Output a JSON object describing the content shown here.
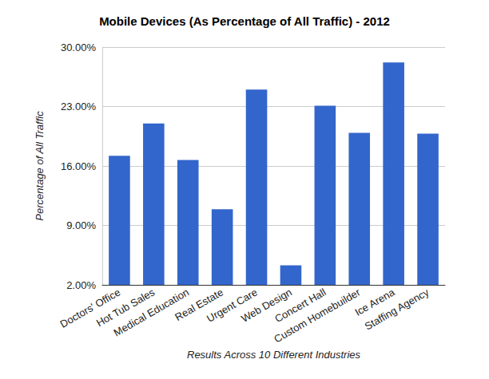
{
  "chart_data": {
    "type": "bar",
    "title": "Mobile Devices (As Percentage of All Traffic) - 2012",
    "x_label": "Results Across 10 Different Industries",
    "y_label": "Percentage of All Traffic",
    "categories": [
      "Doctors' Office",
      "Hot Tub Sales",
      "Medical Education",
      "Real Estate",
      "Urgent Care",
      "Web Design",
      "Concert Hall",
      "Custom Homebuilder",
      "Ice Arena",
      "Staffing Agency"
    ],
    "values": [
      17.2,
      21.0,
      16.7,
      10.9,
      25.0,
      4.3,
      23.1,
      19.9,
      28.2,
      19.8
    ],
    "color": "#3366cc",
    "ylim": [
      2,
      30
    ],
    "yticks": [
      {
        "value": 2,
        "label": "2.00%"
      },
      {
        "value": 9,
        "label": "9.00%"
      },
      {
        "value": 16,
        "label": "16.00%"
      },
      {
        "value": 23,
        "label": "23.00%"
      },
      {
        "value": 30,
        "label": "30.00%"
      }
    ],
    "grid": true
  }
}
